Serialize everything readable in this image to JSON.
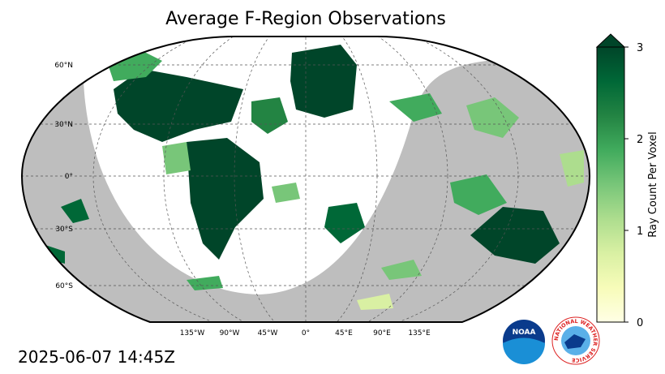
{
  "title": "Average F-Region Observations",
  "timestamp": "2025-06-07 14:45Z",
  "latitude_labels": [
    "60°N",
    "30°N",
    "0°",
    "30°S",
    "60°S"
  ],
  "longitude_labels": [
    "135°W",
    "90°W",
    "45°W",
    "0°",
    "45°E",
    "90°E",
    "135°E"
  ],
  "colorbar": {
    "label": "Ray Count Per Voxel",
    "lim": [
      0,
      3
    ],
    "ticks": [
      0,
      1,
      2,
      3
    ],
    "colors": [
      "#ffffe5",
      "#f7fcb9",
      "#d9f0a3",
      "#addd8e",
      "#78c679",
      "#41ab5d",
      "#238443",
      "#006837",
      "#004529"
    ],
    "extend": "max"
  },
  "logos": {
    "noaa": "NOAA",
    "nws": "NATIONAL WEATHER SERVICE"
  }
}
